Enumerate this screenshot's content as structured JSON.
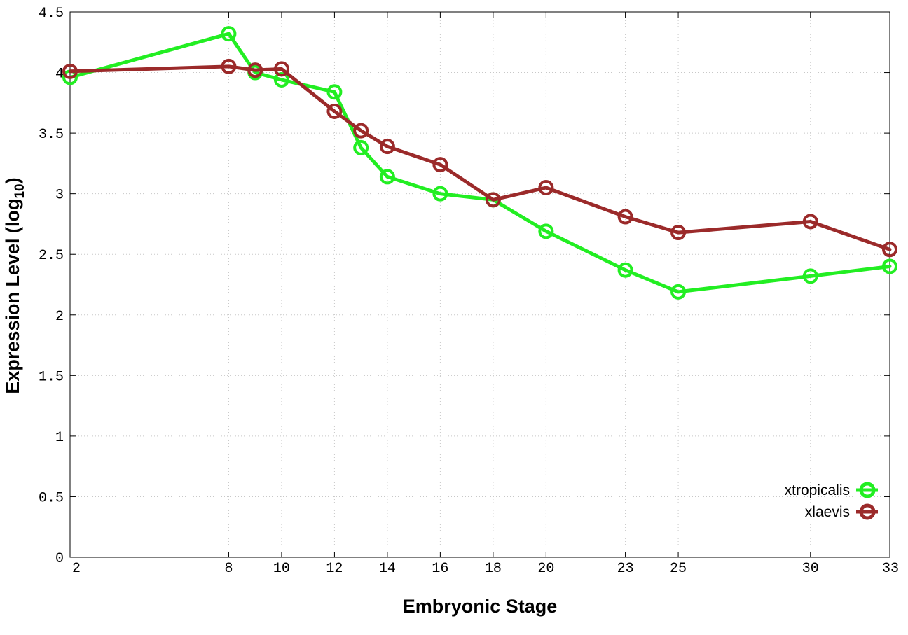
{
  "chart_data": {
    "type": "line",
    "xlabel": "Embryonic Stage",
    "ylabel": {
      "main": "Expression Level (log",
      "subscript": "10",
      "suffix": ")"
    },
    "x": [
      2,
      8,
      9,
      10,
      12,
      13,
      14,
      16,
      18,
      20,
      23,
      25,
      30,
      33
    ],
    "x_tick_labels": [
      "2",
      "8",
      "10",
      "12",
      "14",
      "16",
      "18",
      "20",
      "23",
      "25",
      "30",
      "33"
    ],
    "x_ticks": [
      2,
      8,
      10,
      12,
      14,
      16,
      18,
      20,
      23,
      25,
      30,
      33
    ],
    "xlim": [
      2,
      33
    ],
    "y_ticks": [
      0,
      0.5,
      1,
      1.5,
      2,
      2.5,
      3,
      3.5,
      4,
      4.5
    ],
    "y_tick_labels": [
      "0",
      "0.5",
      "1",
      "1.5",
      "2",
      "2.5",
      "3",
      "3.5",
      "4",
      "4.5"
    ],
    "ylim": [
      0,
      4.5
    ],
    "grid": true,
    "legend_position": "bottom-right",
    "series": [
      {
        "name": "xtropicalis",
        "color": "#22ee22",
        "values": [
          3.96,
          4.32,
          4.0,
          3.94,
          3.84,
          3.38,
          3.14,
          3.0,
          2.95,
          2.69,
          2.37,
          2.19,
          2.32,
          2.4
        ]
      },
      {
        "name": "xlaevis",
        "color": "#9b2a2a",
        "values": [
          4.01,
          4.05,
          4.02,
          4.03,
          3.68,
          3.52,
          3.39,
          3.24,
          2.95,
          3.05,
          2.81,
          2.68,
          2.77,
          2.54
        ]
      }
    ]
  }
}
